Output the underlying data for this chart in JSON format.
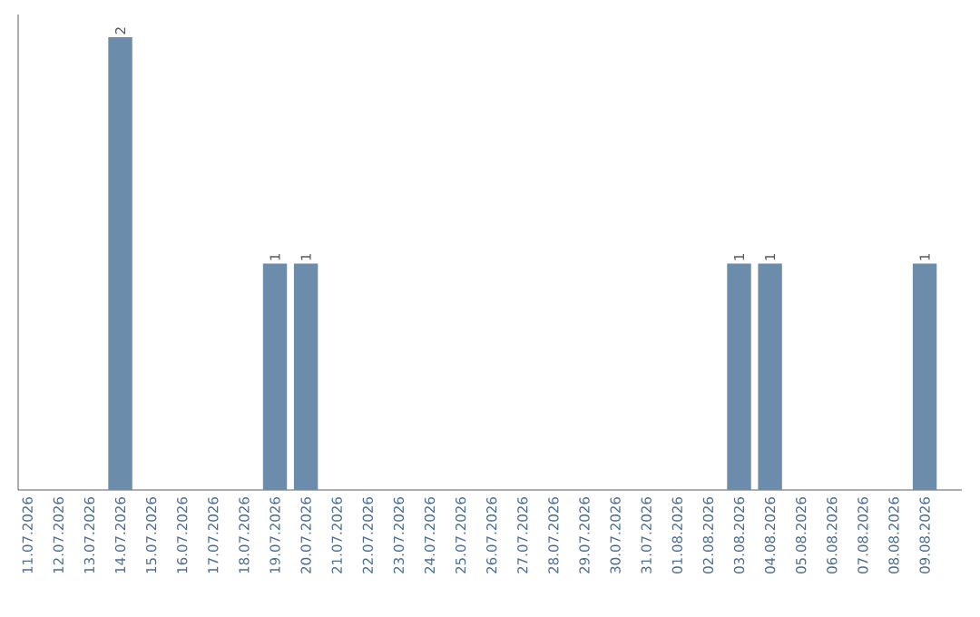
{
  "chart_data": {
    "type": "bar",
    "categories": [
      "11.07.2026",
      "12.07.2026",
      "13.07.2026",
      "14.07.2026",
      "15.07.2026",
      "16.07.2026",
      "17.07.2026",
      "18.07.2026",
      "19.07.2026",
      "20.07.2026",
      "21.07.2026",
      "22.07.2026",
      "23.07.2026",
      "24.07.2026",
      "25.07.2026",
      "26.07.2026",
      "27.07.2026",
      "28.07.2026",
      "29.07.2026",
      "30.07.2026",
      "31.07.2026",
      "01.08.2026",
      "02.08.2026",
      "03.08.2026",
      "04.08.2026",
      "05.08.2026",
      "06.08.2026",
      "07.08.2026",
      "08.08.2026",
      "09.08.2026"
    ],
    "values": [
      0,
      0,
      0,
      2,
      0,
      0,
      0,
      0,
      1,
      1,
      0,
      0,
      0,
      0,
      0,
      0,
      0,
      0,
      0,
      0,
      0,
      0,
      0,
      1,
      1,
      0,
      0,
      0,
      0,
      1
    ],
    "value_labels": [
      null,
      null,
      null,
      "2",
      null,
      null,
      null,
      null,
      "1",
      "1",
      null,
      null,
      null,
      null,
      null,
      null,
      null,
      null,
      null,
      null,
      null,
      null,
      null,
      "1",
      "1",
      null,
      null,
      null,
      null,
      "1"
    ],
    "color": "#6b8cab",
    "tick_labels": "x"
  }
}
